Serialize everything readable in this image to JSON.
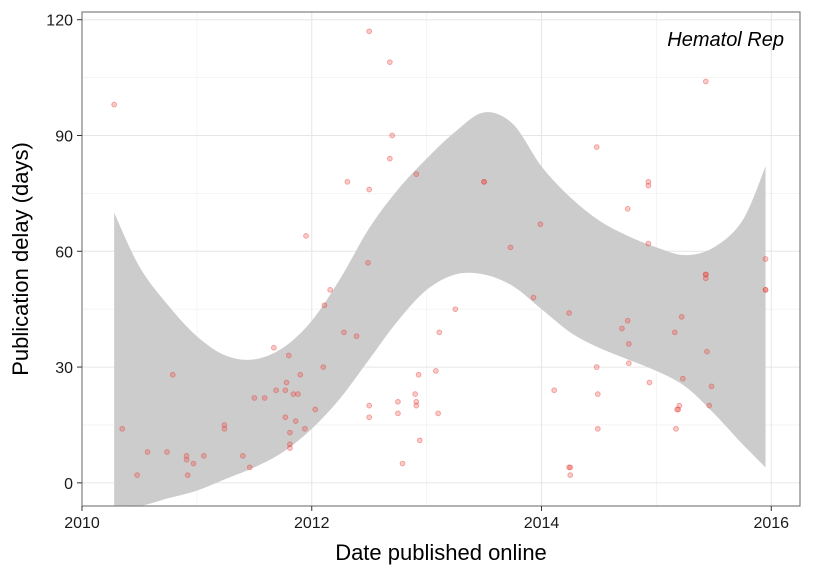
{
  "chart_data": {
    "type": "scatter",
    "title": "",
    "annotation": "Hematol Rep",
    "xlabel": "Date published online",
    "ylabel": "Publication delay (days)",
    "xlim": [
      2010.0,
      2016.25
    ],
    "ylim": [
      -6,
      122
    ],
    "x_ticks": [
      2010,
      2012,
      2014,
      2016
    ],
    "x_tick_labels": [
      "2010",
      "2012",
      "2014",
      "2016"
    ],
    "y_ticks": [
      0,
      30,
      60,
      90,
      120
    ],
    "y_tick_labels": [
      "0",
      "30",
      "60",
      "90",
      "120"
    ],
    "grid": true,
    "legend": "none",
    "point_color": "#e8413a",
    "ribbon_color": "#cccccc",
    "points": [
      {
        "x": 2010.28,
        "y": 98
      },
      {
        "x": 2010.35,
        "y": 14
      },
      {
        "x": 2010.48,
        "y": 2
      },
      {
        "x": 2010.57,
        "y": 8
      },
      {
        "x": 2010.74,
        "y": 8
      },
      {
        "x": 2010.79,
        "y": 28
      },
      {
        "x": 2010.91,
        "y": 7
      },
      {
        "x": 2010.91,
        "y": 6
      },
      {
        "x": 2010.92,
        "y": 2
      },
      {
        "x": 2010.97,
        "y": 5
      },
      {
        "x": 2011.06,
        "y": 7
      },
      {
        "x": 2011.24,
        "y": 15
      },
      {
        "x": 2011.24,
        "y": 14
      },
      {
        "x": 2011.4,
        "y": 7
      },
      {
        "x": 2011.46,
        "y": 4
      },
      {
        "x": 2011.5,
        "y": 22
      },
      {
        "x": 2011.59,
        "y": 22
      },
      {
        "x": 2011.67,
        "y": 35
      },
      {
        "x": 2011.69,
        "y": 24
      },
      {
        "x": 2011.77,
        "y": 17
      },
      {
        "x": 2011.77,
        "y": 24
      },
      {
        "x": 2011.78,
        "y": 26
      },
      {
        "x": 2011.8,
        "y": 33
      },
      {
        "x": 2011.81,
        "y": 13
      },
      {
        "x": 2011.81,
        "y": 10
      },
      {
        "x": 2011.81,
        "y": 9
      },
      {
        "x": 2011.84,
        "y": 23
      },
      {
        "x": 2011.86,
        "y": 16
      },
      {
        "x": 2011.88,
        "y": 23
      },
      {
        "x": 2011.9,
        "y": 28
      },
      {
        "x": 2011.94,
        "y": 14
      },
      {
        "x": 2011.95,
        "y": 64
      },
      {
        "x": 2012.03,
        "y": 19
      },
      {
        "x": 2012.1,
        "y": 30
      },
      {
        "x": 2012.11,
        "y": 46
      },
      {
        "x": 2012.16,
        "y": 50
      },
      {
        "x": 2012.28,
        "y": 39
      },
      {
        "x": 2012.31,
        "y": 78
      },
      {
        "x": 2012.39,
        "y": 38
      },
      {
        "x": 2012.49,
        "y": 57
      },
      {
        "x": 2012.5,
        "y": 117
      },
      {
        "x": 2012.5,
        "y": 76
      },
      {
        "x": 2012.5,
        "y": 20
      },
      {
        "x": 2012.5,
        "y": 17
      },
      {
        "x": 2012.68,
        "y": 109
      },
      {
        "x": 2012.68,
        "y": 84
      },
      {
        "x": 2012.7,
        "y": 90
      },
      {
        "x": 2012.75,
        "y": 21
      },
      {
        "x": 2012.75,
        "y": 18
      },
      {
        "x": 2012.79,
        "y": 5
      },
      {
        "x": 2012.9,
        "y": 23
      },
      {
        "x": 2012.91,
        "y": 21
      },
      {
        "x": 2012.91,
        "y": 20
      },
      {
        "x": 2012.91,
        "y": 80
      },
      {
        "x": 2012.93,
        "y": 28
      },
      {
        "x": 2012.94,
        "y": 11
      },
      {
        "x": 2013.08,
        "y": 29
      },
      {
        "x": 2013.1,
        "y": 18
      },
      {
        "x": 2013.11,
        "y": 39
      },
      {
        "x": 2013.25,
        "y": 45
      },
      {
        "x": 2013.5,
        "y": 78
      },
      {
        "x": 2013.5,
        "y": 78
      },
      {
        "x": 2013.73,
        "y": 61
      },
      {
        "x": 2013.93,
        "y": 48
      },
      {
        "x": 2013.99,
        "y": 67
      },
      {
        "x": 2014.11,
        "y": 24
      },
      {
        "x": 2014.24,
        "y": 44
      },
      {
        "x": 2014.24,
        "y": 4
      },
      {
        "x": 2014.25,
        "y": 4
      },
      {
        "x": 2014.25,
        "y": 2
      },
      {
        "x": 2014.48,
        "y": 87
      },
      {
        "x": 2014.48,
        "y": 30
      },
      {
        "x": 2014.49,
        "y": 23
      },
      {
        "x": 2014.49,
        "y": 14
      },
      {
        "x": 2014.7,
        "y": 40
      },
      {
        "x": 2014.75,
        "y": 71
      },
      {
        "x": 2014.75,
        "y": 42
      },
      {
        "x": 2014.76,
        "y": 36
      },
      {
        "x": 2014.76,
        "y": 31
      },
      {
        "x": 2014.93,
        "y": 78
      },
      {
        "x": 2014.93,
        "y": 77
      },
      {
        "x": 2014.93,
        "y": 62
      },
      {
        "x": 2014.94,
        "y": 26
      },
      {
        "x": 2015.16,
        "y": 39
      },
      {
        "x": 2015.17,
        "y": 14
      },
      {
        "x": 2015.18,
        "y": 19
      },
      {
        "x": 2015.19,
        "y": 19
      },
      {
        "x": 2015.2,
        "y": 20
      },
      {
        "x": 2015.22,
        "y": 43
      },
      {
        "x": 2015.23,
        "y": 27
      },
      {
        "x": 2015.43,
        "y": 104
      },
      {
        "x": 2015.43,
        "y": 54
      },
      {
        "x": 2015.43,
        "y": 54
      },
      {
        "x": 2015.43,
        "y": 53
      },
      {
        "x": 2015.44,
        "y": 34
      },
      {
        "x": 2015.46,
        "y": 20
      },
      {
        "x": 2015.48,
        "y": 25
      },
      {
        "x": 2015.95,
        "y": 58
      },
      {
        "x": 2015.95,
        "y": 50
      },
      {
        "x": 2015.95,
        "y": 50
      }
    ],
    "ribbon": {
      "x": [
        2010.28,
        2010.5,
        2010.75,
        2011.0,
        2011.25,
        2011.5,
        2011.75,
        2012.0,
        2012.25,
        2012.5,
        2012.75,
        2013.0,
        2013.25,
        2013.5,
        2013.75,
        2014.0,
        2014.25,
        2014.5,
        2014.75,
        2015.0,
        2015.25,
        2015.5,
        2015.75,
        2015.95
      ],
      "upper": [
        70,
        56,
        46,
        38,
        33,
        32,
        35,
        42,
        53,
        66,
        76,
        84,
        91,
        96,
        93,
        82,
        74,
        68,
        64,
        61,
        59,
        61,
        68,
        82
      ],
      "lower": [
        -6,
        -6,
        -4,
        -2,
        1,
        4,
        8,
        14,
        22,
        32,
        42,
        50,
        54,
        54,
        51,
        45,
        39,
        35,
        32,
        29,
        25,
        18,
        10,
        4
      ]
    }
  }
}
